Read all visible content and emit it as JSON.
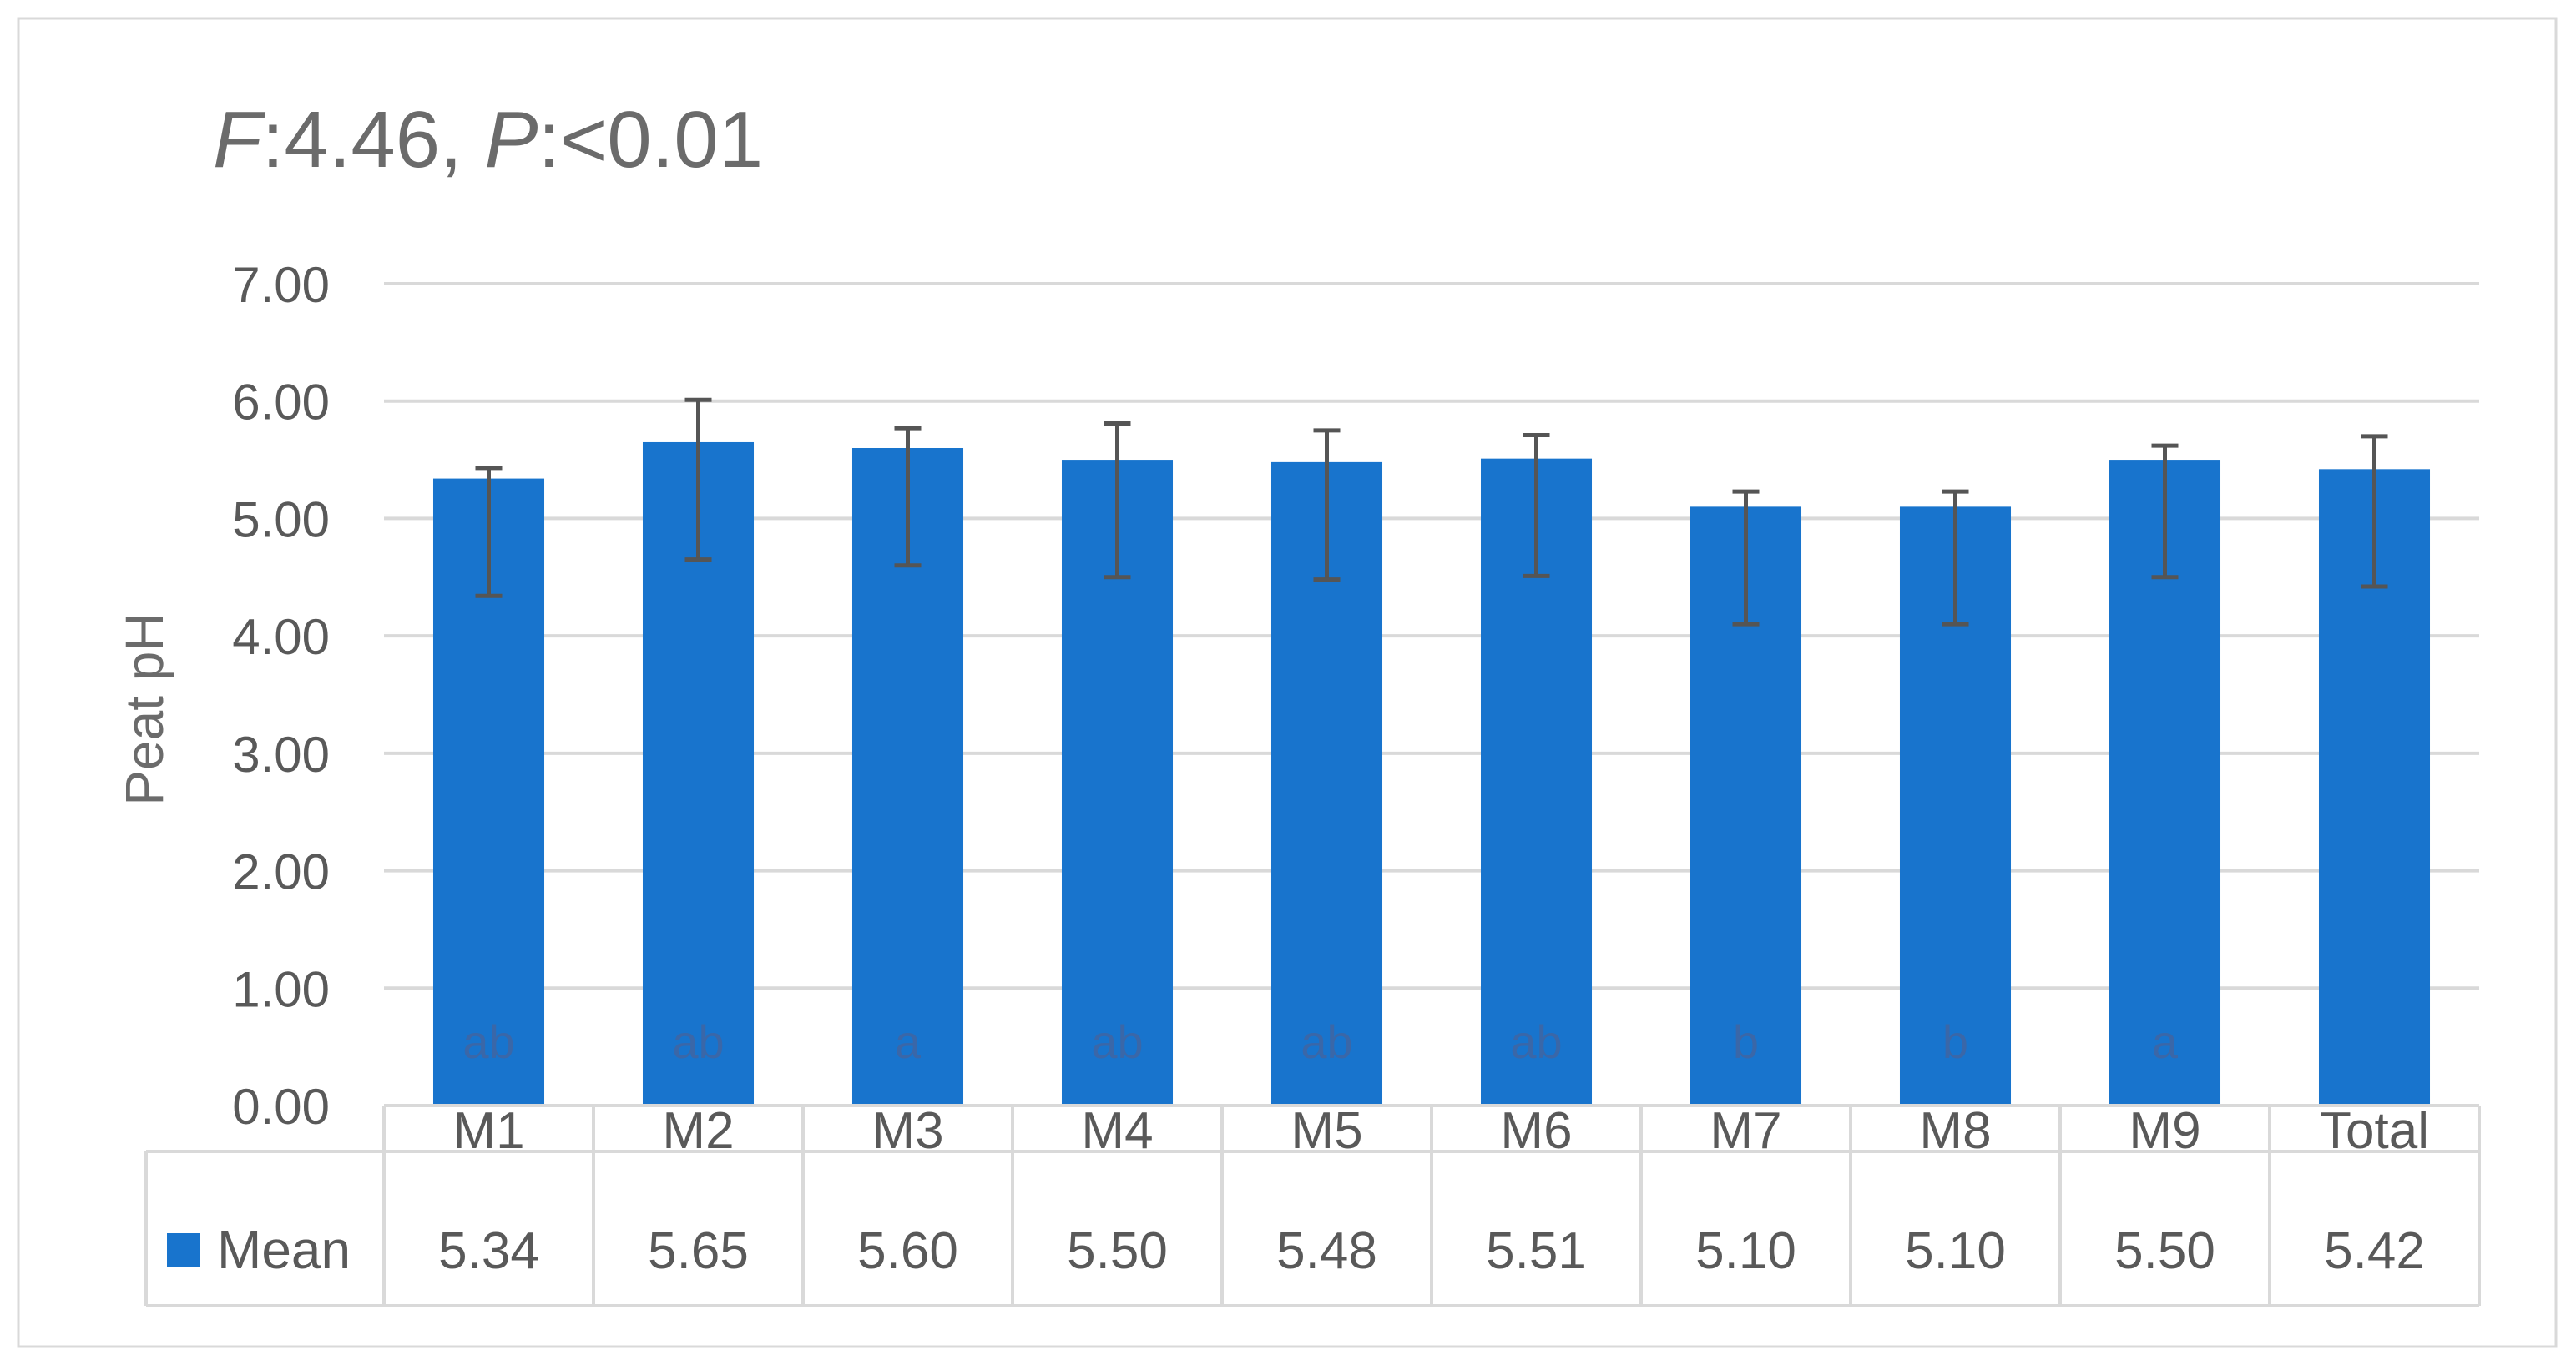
{
  "chart_data": {
    "type": "bar",
    "title": {
      "f_letter": "F",
      "f_value": ":4.46, ",
      "p_letter": "P",
      "p_value": ":<0.01"
    },
    "ylabel": "Peat pH",
    "xlabel": "",
    "ylim": [
      0,
      7
    ],
    "yticks": [
      "0.00",
      "1.00",
      "2.00",
      "3.00",
      "4.00",
      "5.00",
      "6.00",
      "7.00"
    ],
    "grid": true,
    "legend": "data-table",
    "categories": [
      "M1",
      "M2",
      "M3",
      "M4",
      "M5",
      "M6",
      "M7",
      "M8",
      "M9",
      "Total"
    ],
    "series": [
      {
        "name": "Mean",
        "color": "#1874CD",
        "values": [
          5.34,
          5.65,
          5.6,
          5.5,
          5.48,
          5.51,
          5.1,
          5.1,
          5.5,
          5.42
        ],
        "value_labels": [
          "5.34",
          "5.65",
          "5.60",
          "5.50",
          "5.48",
          "5.51",
          "5.10",
          "5.10",
          "5.50",
          "5.42"
        ],
        "error_high": [
          5.43,
          6.01,
          5.77,
          5.81,
          5.75,
          5.71,
          5.23,
          5.23,
          5.62,
          5.7
        ],
        "error_low": [
          4.34,
          4.65,
          4.6,
          4.5,
          4.48,
          4.51,
          4.1,
          4.1,
          4.5,
          4.42
        ],
        "significance": [
          "ab",
          "ab",
          "a",
          "ab",
          "ab",
          "ab",
          "b",
          "b",
          "a",
          ""
        ]
      }
    ]
  }
}
